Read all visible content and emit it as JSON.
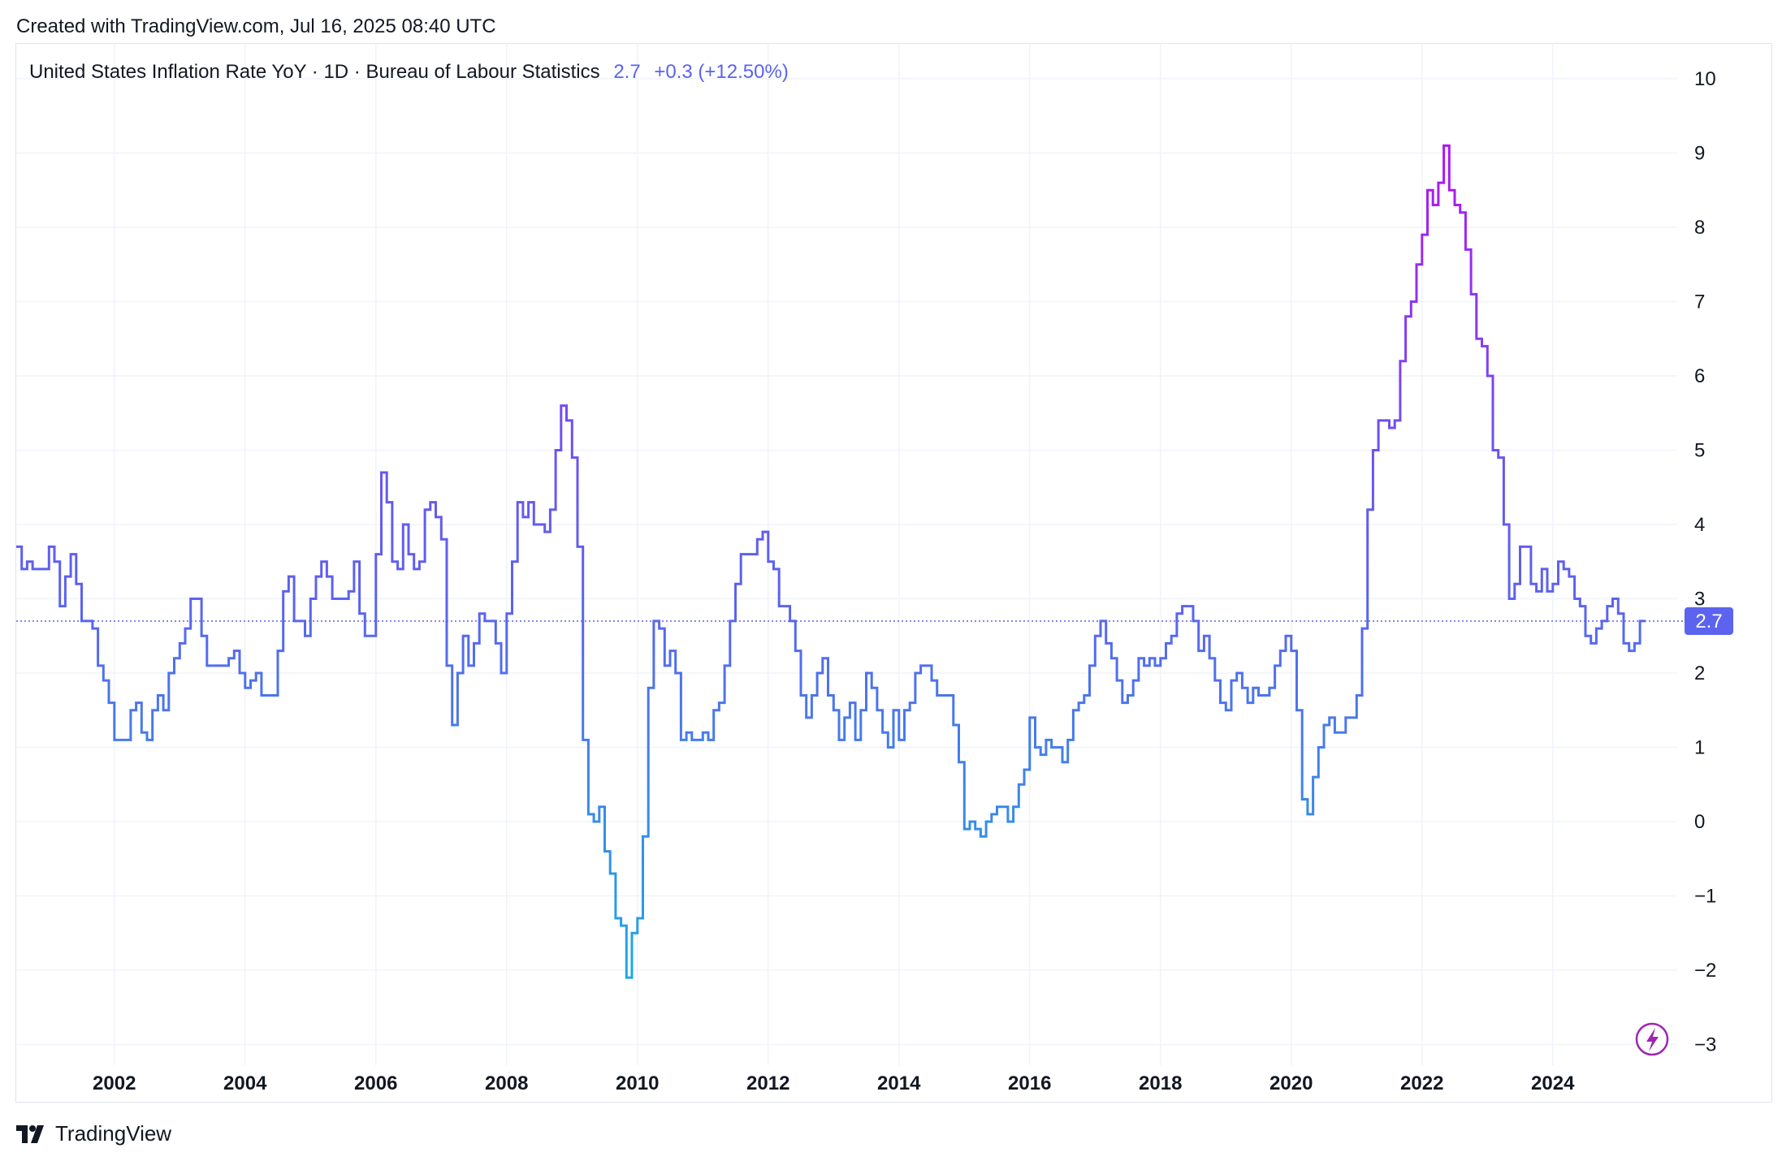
{
  "header": {
    "created": "Created with TradingView.com, Jul 16, 2025 08:40 UTC"
  },
  "legend": {
    "symbol": "United States Inflation Rate YoY · 1D · Bureau of Labour Statistics",
    "last": "2.7",
    "change": "+0.3 (+12.50%)"
  },
  "brand": {
    "name": "TradingView",
    "logo_icon": "tradingview-logo-icon"
  },
  "colors": {
    "line_low": "#1da9e6",
    "line_mid": "#5b63ef",
    "line_high": "#b213f5",
    "badge": "#5b63ef",
    "grid": "#f0f3fa"
  },
  "chart_data": {
    "type": "line",
    "title": "United States Inflation Rate YoY",
    "step": true,
    "xlabel": "",
    "ylabel": "",
    "ylim": [
      -3,
      10
    ],
    "xlim": [
      2000.5,
      2025.75
    ],
    "y_ticks": [
      "10",
      "9",
      "8",
      "7",
      "6",
      "5",
      "4",
      "3",
      "2",
      "1",
      "0",
      "−1",
      "−2",
      "−3"
    ],
    "x_ticks": [
      "2002",
      "2004",
      "2006",
      "2008",
      "2010",
      "2012",
      "2014",
      "2016",
      "2018",
      "2020",
      "2022",
      "2024"
    ],
    "last_value_label": "2.7",
    "grid": true,
    "series": [
      {
        "name": "United States Inflation Rate YoY",
        "start": "2000-07",
        "frequency": "monthly",
        "values": [
          3.7,
          3.4,
          3.5,
          3.4,
          3.4,
          3.4,
          3.7,
          3.5,
          2.9,
          3.3,
          3.6,
          3.2,
          2.7,
          2.7,
          2.6,
          2.1,
          1.9,
          1.6,
          1.1,
          1.1,
          1.1,
          1.5,
          1.6,
          1.2,
          1.1,
          1.5,
          1.7,
          1.5,
          2.0,
          2.2,
          2.4,
          2.6,
          3.0,
          3.0,
          2.5,
          2.1,
          2.1,
          2.1,
          2.1,
          2.2,
          2.3,
          2.0,
          1.8,
          1.9,
          2.0,
          1.7,
          1.7,
          1.7,
          2.3,
          3.1,
          3.3,
          2.7,
          2.7,
          2.5,
          3.0,
          3.3,
          3.5,
          3.3,
          3.0,
          3.0,
          3.0,
          3.1,
          3.5,
          2.8,
          2.5,
          2.5,
          3.6,
          4.7,
          4.3,
          3.5,
          3.4,
          4.0,
          3.6,
          3.4,
          3.5,
          4.2,
          4.3,
          4.1,
          3.8,
          2.1,
          1.3,
          2.0,
          2.5,
          2.1,
          2.4,
          2.8,
          2.7,
          2.7,
          2.4,
          2.0,
          2.8,
          3.5,
          4.3,
          4.1,
          4.3,
          4.0,
          4.0,
          3.9,
          4.2,
          5.0,
          5.6,
          5.4,
          4.9,
          3.7,
          1.1,
          0.1,
          0.0,
          0.2,
          -0.4,
          -0.7,
          -1.3,
          -1.4,
          -2.1,
          -1.5,
          -1.3,
          -0.2,
          1.8,
          2.7,
          2.6,
          2.1,
          2.3,
          2.0,
          1.1,
          1.2,
          1.1,
          1.1,
          1.2,
          1.1,
          1.5,
          1.6,
          2.1,
          2.7,
          3.2,
          3.6,
          3.6,
          3.6,
          3.8,
          3.9,
          3.5,
          3.4,
          2.9,
          2.9,
          2.7,
          2.3,
          1.7,
          1.4,
          1.7,
          2.0,
          2.2,
          1.7,
          1.5,
          1.1,
          1.4,
          1.6,
          1.1,
          1.5,
          2.0,
          1.8,
          1.5,
          1.2,
          1.0,
          1.5,
          1.1,
          1.5,
          1.6,
          2.0,
          2.1,
          2.1,
          1.9,
          1.7,
          1.7,
          1.7,
          1.3,
          0.8,
          -0.1,
          0.0,
          -0.1,
          -0.2,
          0.0,
          0.1,
          0.2,
          0.2,
          0.0,
          0.2,
          0.5,
          0.7,
          1.4,
          1.0,
          0.9,
          1.1,
          1.0,
          1.0,
          0.8,
          1.1,
          1.5,
          1.6,
          1.7,
          2.1,
          2.5,
          2.7,
          2.4,
          2.2,
          1.9,
          1.6,
          1.7,
          1.9,
          2.2,
          2.1,
          2.2,
          2.1,
          2.2,
          2.4,
          2.5,
          2.8,
          2.9,
          2.9,
          2.7,
          2.3,
          2.5,
          2.2,
          1.9,
          1.6,
          1.5,
          1.9,
          2.0,
          1.8,
          1.6,
          1.8,
          1.7,
          1.7,
          1.8,
          2.1,
          2.3,
          2.5,
          2.3,
          1.5,
          0.3,
          0.1,
          0.6,
          1.0,
          1.3,
          1.4,
          1.2,
          1.2,
          1.4,
          1.4,
          1.7,
          2.6,
          4.2,
          5.0,
          5.4,
          5.4,
          5.3,
          5.4,
          6.2,
          6.8,
          7.0,
          7.5,
          7.9,
          8.5,
          8.3,
          8.6,
          9.1,
          8.5,
          8.3,
          8.2,
          7.7,
          7.1,
          6.5,
          6.4,
          6.0,
          5.0,
          4.9,
          4.0,
          3.0,
          3.2,
          3.7,
          3.7,
          3.2,
          3.1,
          3.4,
          3.1,
          3.2,
          3.5,
          3.4,
          3.3,
          3.0,
          2.9,
          2.5,
          2.4,
          2.6,
          2.7,
          2.9,
          3.0,
          2.8,
          2.4,
          2.3,
          2.4,
          2.7
        ]
      }
    ]
  }
}
